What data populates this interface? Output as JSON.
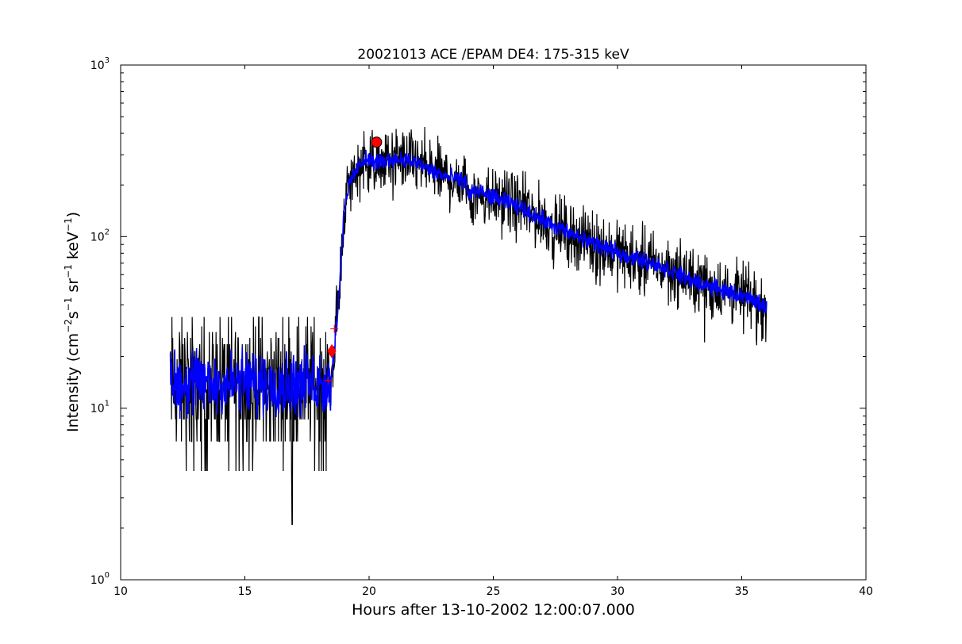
{
  "chart_data": {
    "type": "line",
    "title": "20021013 ACE /EPAM DE4: 175-315 keV",
    "xlabel": "Hours after 13-10-2002 12:00:07.000",
    "ylabel_parts": {
      "base": "Intensity (cm",
      "e1": "−2",
      "s": "s",
      "e2": "−1",
      "sr": " sr",
      "e3": "−1",
      "kev": " keV",
      "e4": "−1",
      "end": ")"
    },
    "xlim": [
      10,
      40
    ],
    "ylim": [
      1,
      1000
    ],
    "yscale": "log",
    "grid": false,
    "x_ticks": [
      {
        "value": 10,
        "label": "10"
      },
      {
        "value": 15,
        "label": "15"
      },
      {
        "value": 20,
        "label": "20"
      },
      {
        "value": 25,
        "label": "25"
      },
      {
        "value": 30,
        "label": "30"
      },
      {
        "value": 35,
        "label": "35"
      },
      {
        "value": 40,
        "label": "40"
      }
    ],
    "y_ticks": [
      {
        "value": 1,
        "base": "10",
        "exp": "0"
      },
      {
        "value": 10,
        "base": "10",
        "exp": "1"
      },
      {
        "value": 100,
        "base": "10",
        "exp": "2"
      },
      {
        "value": 1000,
        "base": "10",
        "exp": "3"
      }
    ],
    "series": [
      {
        "role": "raw intensity",
        "color": "#000000",
        "trend": {
          "x": [
            12.0,
            18.4,
            18.5,
            18.6,
            18.7,
            18.8,
            18.9,
            19.0,
            19.2,
            19.5,
            19.8,
            20.2,
            20.6,
            21.0,
            21.5,
            22.0,
            23.0,
            23.9,
            24.0,
            24.2,
            25.0,
            26.0,
            27.0,
            28.0,
            29.0,
            30.0,
            31.0,
            32.0,
            33.0,
            34.0,
            35.0,
            36.0
          ],
          "y": [
            14,
            14,
            16,
            22,
            32,
            50,
            85,
            150,
            200,
            245,
            285,
            270,
            275,
            285,
            280,
            265,
            225,
            210,
            175,
            185,
            170,
            150,
            125,
            105,
            92,
            80,
            73,
            65,
            55,
            50,
            45,
            39
          ]
        },
        "noise_range": {
          "baseline": [
            2.1,
            34
          ],
          "decay_factor": [
            0.55,
            1.45
          ]
        }
      },
      {
        "role": "smoothed intensity",
        "color": "#0000ff",
        "trend": {
          "x": [
            12.0,
            18.4,
            18.5,
            18.6,
            18.7,
            18.8,
            18.9,
            19.0,
            19.2,
            19.5,
            19.8,
            20.2,
            20.6,
            21.0,
            21.5,
            22.0,
            23.0,
            23.9,
            24.0,
            24.2,
            25.0,
            26.0,
            27.0,
            28.0,
            29.0,
            30.0,
            31.0,
            32.0,
            33.0,
            34.0,
            35.0,
            36.0
          ],
          "y": [
            14,
            14,
            16,
            22,
            32,
            50,
            85,
            150,
            200,
            245,
            285,
            270,
            275,
            285,
            280,
            265,
            225,
            210,
            175,
            185,
            170,
            150,
            125,
            105,
            92,
            80,
            73,
            65,
            55,
            50,
            45,
            39
          ]
        }
      }
    ],
    "markers": [
      {
        "name": "peak-marker",
        "shape": "circle",
        "x": 20.3,
        "y": 355,
        "color": "#ff0000"
      },
      {
        "name": "onset-marker",
        "shape": "diamond",
        "x": 18.5,
        "y": 21.5,
        "color": "#ff0000"
      },
      {
        "name": "plus-marker",
        "shape": "plus",
        "x": 18.6,
        "y": 29,
        "color": "#ff0000"
      },
      {
        "name": "plus-marker",
        "shape": "plus",
        "x": 18.35,
        "y": 14.5,
        "color": "#ff0000"
      }
    ]
  }
}
